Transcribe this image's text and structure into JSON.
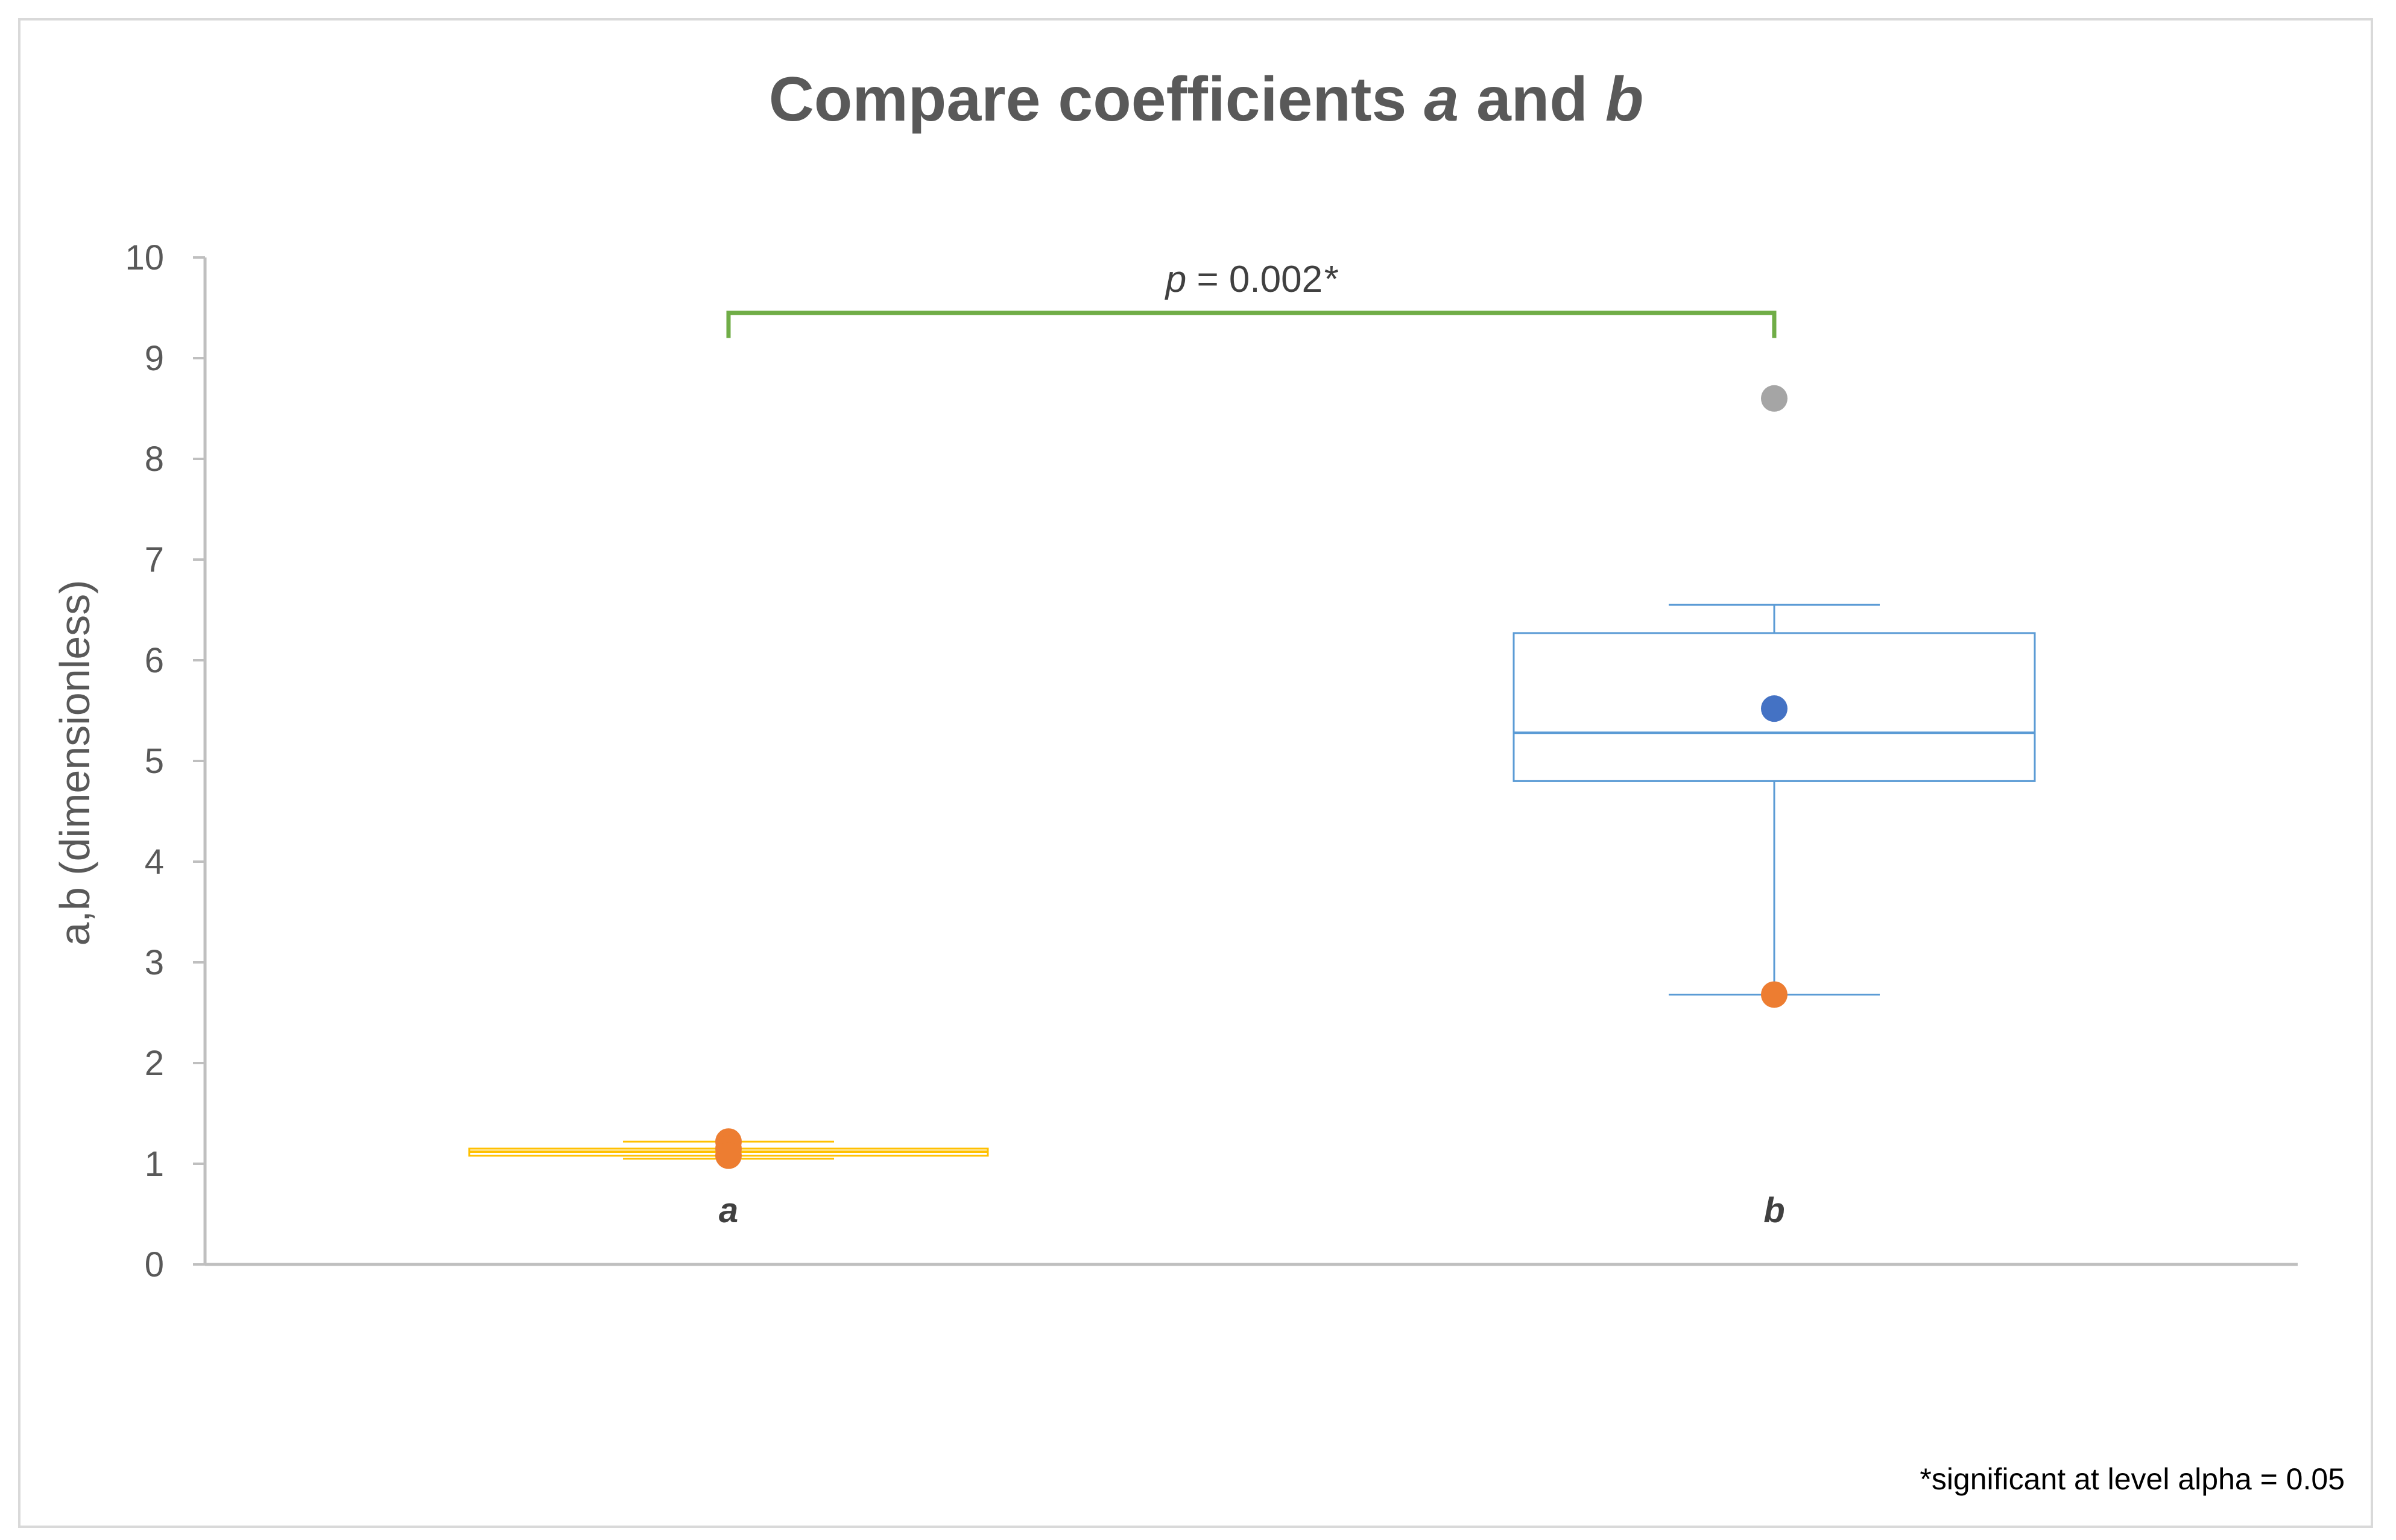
{
  "chart_data": {
    "type": "box",
    "title": {
      "prefix": "Compare coefficients ",
      "var1": "a",
      "middle": " and ",
      "var2": "b"
    },
    "ylabel": "a,b (dimensionless)",
    "xlabel": "",
    "ylim": [
      0,
      10
    ],
    "yticks": [
      0,
      1,
      2,
      3,
      4,
      5,
      6,
      7,
      8,
      9,
      10
    ],
    "grid": false,
    "categories": [
      "a",
      "b"
    ],
    "boxes": [
      {
        "category": "a",
        "whisker_low": 1.05,
        "q1": 1.08,
        "median": 1.12,
        "q3": 1.15,
        "whisker_high": 1.22,
        "color": "#ffc000",
        "points": [
          {
            "value": 1.22,
            "color": "#ed7d31"
          },
          {
            "value": 1.15,
            "color": "#ed7d31"
          },
          {
            "value": 1.08,
            "color": "#ed7d31"
          }
        ]
      },
      {
        "category": "b",
        "whisker_low": 2.68,
        "q1": 4.8,
        "median": 5.28,
        "q3": 6.27,
        "whisker_high": 6.55,
        "color": "#5b9bd5",
        "points": [
          {
            "value": 5.52,
            "color": "#4472c4"
          },
          {
            "value": 2.68,
            "color": "#ed7d31"
          },
          {
            "value": 8.6,
            "color": "#a5a5a5"
          }
        ]
      }
    ],
    "significance": {
      "from": "a",
      "to": "b",
      "y": 9.45,
      "drop": 0.25,
      "label_p": "p",
      "label_rest": " = 0.002",
      "label_star": "*",
      "color": "#70ad47"
    },
    "footnote": "*significant at level alpha = 0.05"
  }
}
